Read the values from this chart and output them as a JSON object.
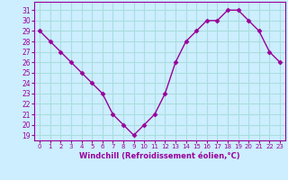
{
  "x": [
    0,
    1,
    2,
    3,
    4,
    5,
    6,
    7,
    8,
    9,
    10,
    11,
    12,
    13,
    14,
    15,
    16,
    17,
    18,
    19,
    20,
    21,
    22,
    23
  ],
  "y": [
    29,
    28,
    27,
    26,
    25,
    24,
    23,
    21,
    20,
    19,
    20,
    21,
    23,
    26,
    28,
    29,
    30,
    30,
    31,
    31,
    30,
    29,
    27,
    26
  ],
  "line_color": "#990099",
  "marker": "D",
  "marker_size": 2.5,
  "bg_color": "#cceeff",
  "grid_color": "#aadddd",
  "xlabel": "Windchill (Refroidissement éolien,°C)",
  "xlabel_color": "#990099",
  "ylabel_ticks": [
    19,
    20,
    21,
    22,
    23,
    24,
    25,
    26,
    27,
    28,
    29,
    30,
    31
  ],
  "xtick_labels": [
    "0",
    "1",
    "2",
    "3",
    "4",
    "5",
    "6",
    "7",
    "8",
    "9",
    "10",
    "11",
    "12",
    "13",
    "14",
    "15",
    "16",
    "17",
    "18",
    "19",
    "20",
    "21",
    "22",
    "23"
  ],
  "ylim": [
    18.5,
    31.8
  ],
  "xlim": [
    -0.5,
    23.5
  ],
  "tick_color": "#990099",
  "line_width": 1.0
}
